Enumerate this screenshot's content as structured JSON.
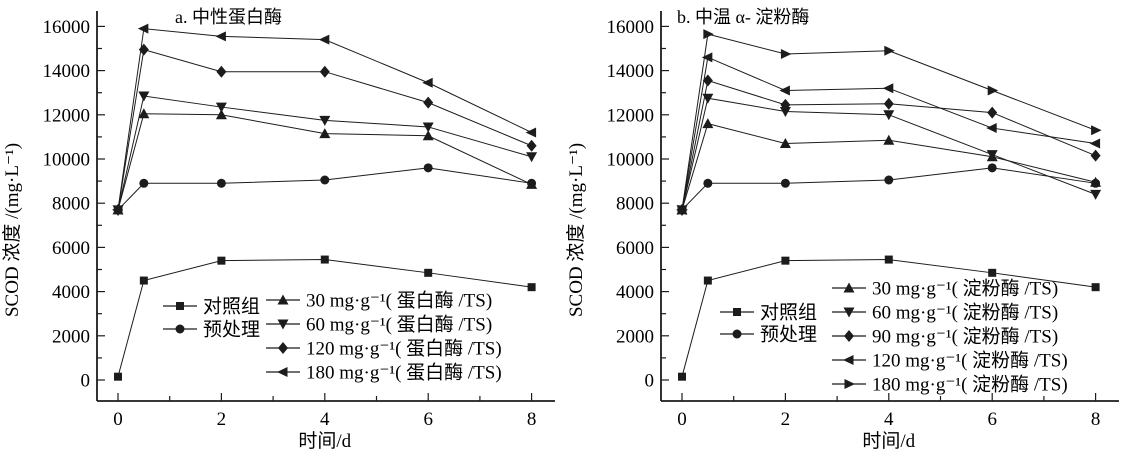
{
  "figure": {
    "background": "#ffffff",
    "line_color": "#1c1c1c",
    "text_color": "#000000"
  },
  "chart_data": [
    {
      "type": "line",
      "panel": "a",
      "title": "a. 中性蛋白酶",
      "xlabel": "时间/d",
      "ylabel": "SCOD 浓度 /(mg·L⁻¹)",
      "x": [
        0,
        0.5,
        2,
        4,
        6,
        8
      ],
      "xlim": [
        0,
        8
      ],
      "ylim": [
        0,
        16000
      ],
      "xticks_major": [
        0,
        2,
        4,
        6,
        8
      ],
      "xticks_minor": [
        1,
        3,
        5,
        7
      ],
      "yticks_major": [
        0,
        2000,
        4000,
        6000,
        8000,
        10000,
        12000,
        14000,
        16000
      ],
      "ytick_minor_step": 1000,
      "grid": false,
      "legend_position": "inside-bottom",
      "series": [
        {
          "name": "对照组",
          "marker": "square",
          "values": [
            150,
            4500,
            5400,
            5450,
            4850,
            4200
          ]
        },
        {
          "name": "预处理",
          "marker": "circle",
          "values": [
            7700,
            8900,
            8900,
            9050,
            9600,
            8900
          ]
        },
        {
          "name": "30 mg·g⁻¹( 蛋白酶 /TS)",
          "marker": "triangle-up",
          "values": [
            7700,
            12050,
            12000,
            11150,
            11050,
            8850
          ]
        },
        {
          "name": "60 mg·g⁻¹( 蛋白酶 /TS)",
          "marker": "triangle-down",
          "values": [
            7700,
            12850,
            12350,
            11750,
            11450,
            10100
          ]
        },
        {
          "name": "120 mg·g⁻¹( 蛋白酶 /TS)",
          "marker": "diamond",
          "values": [
            7700,
            14950,
            13950,
            13950,
            12550,
            10600
          ]
        },
        {
          "name": "180 mg·g⁻¹( 蛋白酶 /TS)",
          "marker": "triangle-left",
          "values": [
            7700,
            15900,
            15550,
            15400,
            13450,
            11200
          ]
        }
      ]
    },
    {
      "type": "line",
      "panel": "b",
      "title": "b. 中温 α- 淀粉酶",
      "xlabel": "时间/d",
      "ylabel": "SCOD 浓度 /(mg·L⁻¹)",
      "x": [
        0,
        0.5,
        2,
        4,
        6,
        8
      ],
      "xlim": [
        0,
        8
      ],
      "ylim": [
        0,
        16000
      ],
      "xticks_major": [
        0,
        2,
        4,
        6,
        8
      ],
      "xticks_minor": [
        1,
        3,
        5,
        7
      ],
      "yticks_major": [
        0,
        2000,
        4000,
        6000,
        8000,
        10000,
        12000,
        14000,
        16000
      ],
      "ytick_minor_step": 1000,
      "grid": false,
      "legend_position": "inside-bottom",
      "series": [
        {
          "name": "对照组",
          "marker": "square",
          "values": [
            150,
            4500,
            5400,
            5450,
            4850,
            4200
          ]
        },
        {
          "name": "预处理",
          "marker": "circle",
          "values": [
            7700,
            8900,
            8900,
            9050,
            9600,
            8900
          ]
        },
        {
          "name": "30 mg·g⁻¹( 淀粉酶 /TS)",
          "marker": "triangle-up",
          "values": [
            7700,
            11600,
            10700,
            10850,
            10100,
            8950
          ]
        },
        {
          "name": "60 mg·g⁻¹( 淀粉酶 /TS)",
          "marker": "triangle-down",
          "values": [
            7700,
            12750,
            12150,
            12000,
            10200,
            8400
          ]
        },
        {
          "name": "90 mg·g⁻¹( 淀粉酶 /TS)",
          "marker": "diamond",
          "values": [
            7700,
            13550,
            12450,
            12500,
            12100,
            10150
          ]
        },
        {
          "name": "120 mg·g⁻¹( 淀粉酶 /TS)",
          "marker": "triangle-left",
          "values": [
            7700,
            14600,
            13100,
            13200,
            11400,
            10700
          ]
        },
        {
          "name": "180 mg·g⁻¹( 淀粉酶 /TS)",
          "marker": "triangle-right",
          "values": [
            7700,
            15650,
            14750,
            14900,
            13100,
            11300
          ]
        }
      ]
    }
  ]
}
